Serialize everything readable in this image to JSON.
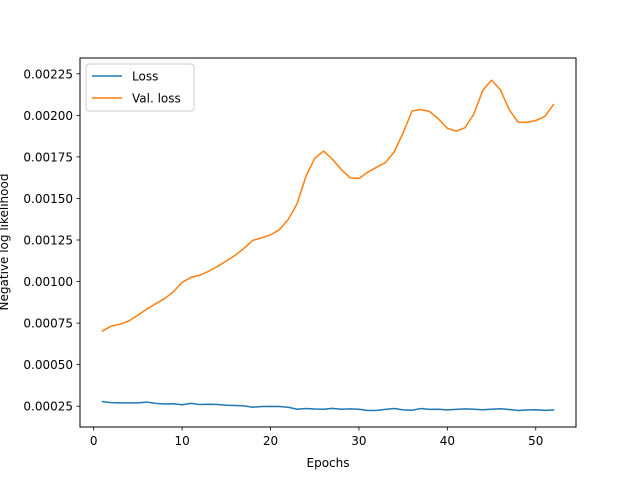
{
  "chart_data": {
    "type": "line",
    "title": "",
    "xlabel": "Epochs",
    "ylabel": "Negative log likelihood",
    "xlim": [
      -1.55,
      54.55
    ],
    "ylim": [
      0.000125,
      0.002345
    ],
    "xticks": [
      0,
      10,
      20,
      30,
      40,
      50
    ],
    "yticks": [
      0.00025,
      0.0005,
      0.00075,
      0.001,
      0.00125,
      0.0015,
      0.00175,
      0.002,
      0.00225
    ],
    "ytick_labels": [
      "0.00025",
      "0.00050",
      "0.00075",
      "0.00100",
      "0.00125",
      "0.00150",
      "0.00175",
      "0.00200",
      "0.00225"
    ],
    "grid": false,
    "legend_position": "top-left",
    "x": [
      1,
      2,
      3,
      4,
      5,
      6,
      7,
      8,
      9,
      10,
      11,
      12,
      13,
      14,
      15,
      16,
      17,
      18,
      19,
      20,
      21,
      22,
      23,
      24,
      25,
      26,
      27,
      28,
      29,
      30,
      31,
      32,
      33,
      34,
      35,
      36,
      37,
      38,
      39,
      40,
      41,
      42,
      43,
      44,
      45,
      46,
      47,
      48,
      49,
      50,
      51,
      52
    ],
    "series": [
      {
        "name": "Loss",
        "color": "#1f77b4",
        "values": [
          0.000278,
          0.000272,
          0.00027,
          0.00027,
          0.00027,
          0.000275,
          0.000267,
          0.000263,
          0.000265,
          0.000259,
          0.000267,
          0.00026,
          0.000262,
          0.00026,
          0.000256,
          0.000254,
          0.000252,
          0.000244,
          0.000248,
          0.000249,
          0.000248,
          0.000244,
          0.000232,
          0.000236,
          0.000233,
          0.000232,
          0.000237,
          0.000232,
          0.000234,
          0.000232,
          0.000224,
          0.000225,
          0.000231,
          0.000236,
          0.000228,
          0.000226,
          0.000236,
          0.000231,
          0.000232,
          0.000228,
          0.000231,
          0.000234,
          0.000232,
          0.000229,
          0.000232,
          0.000235,
          0.00023,
          0.000224,
          0.000227,
          0.000229,
          0.000225,
          0.000228
        ]
      },
      {
        "name": "Val. loss",
        "color": "#ff7f0e",
        "values": [
          0.000703,
          0.000733,
          0.000743,
          0.000764,
          0.000797,
          0.000834,
          0.000866,
          0.000897,
          0.000938,
          0.000995,
          0.001025,
          0.001038,
          0.001062,
          0.001091,
          0.001124,
          0.001158,
          0.0012,
          0.001248,
          0.001263,
          0.001281,
          0.001312,
          0.001373,
          0.001468,
          0.001632,
          0.001742,
          0.001785,
          0.001736,
          0.001674,
          0.001624,
          0.00162,
          0.001658,
          0.001688,
          0.001716,
          0.001781,
          0.001895,
          0.002026,
          0.002035,
          0.002023,
          0.001978,
          0.001922,
          0.001905,
          0.001926,
          0.002008,
          0.00215,
          0.002212,
          0.002153,
          0.002034,
          0.001959,
          0.001958,
          0.001969,
          0.001992,
          0.002064
        ]
      }
    ]
  }
}
